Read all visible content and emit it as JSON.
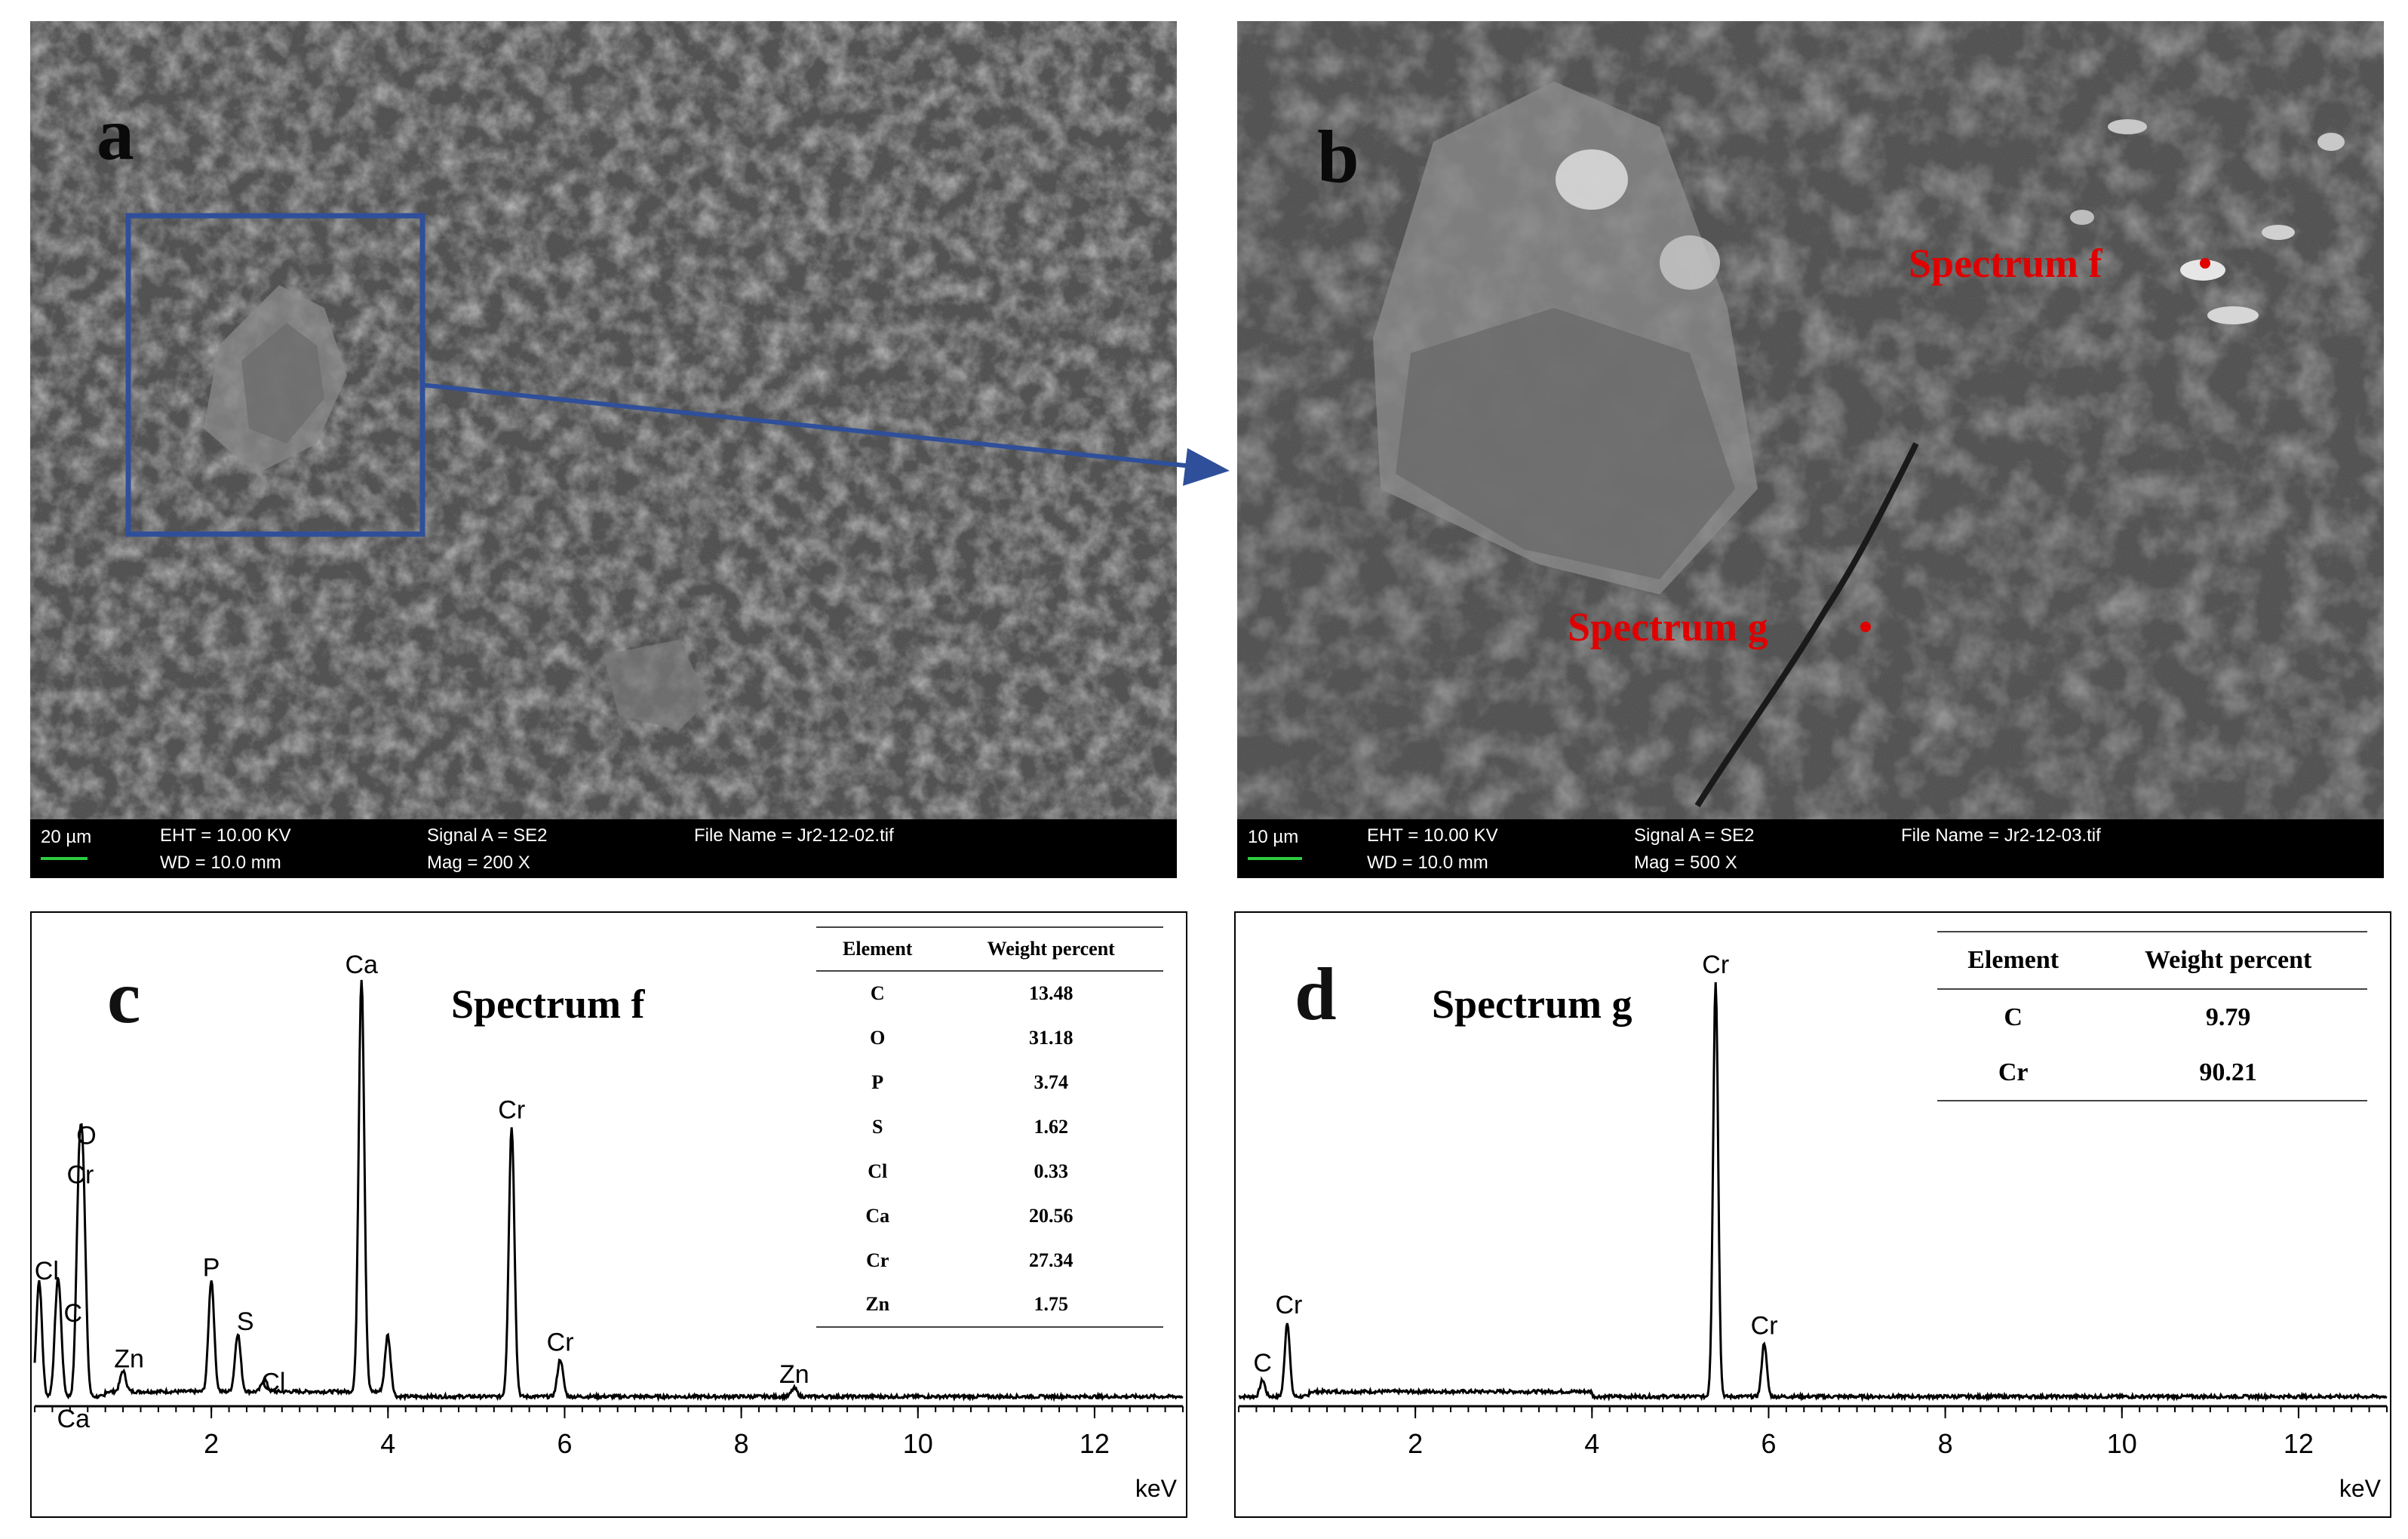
{
  "panels": {
    "a": {
      "letter": "a",
      "info": {
        "scale": "20 µm",
        "eht": "EHT = 10.00 KV",
        "wd": "WD = 10.0 mm",
        "signal": "Signal A = SE2",
        "mag": "Mag =    200 X",
        "file": "File Name = Jr2-12-02.tif"
      }
    },
    "b": {
      "letter": "b",
      "info": {
        "scale": "10 µm",
        "eht": "EHT = 10.00 KV",
        "wd": "WD = 10.0 mm",
        "signal": "Signal A = SE2",
        "mag": "Mag =    500 X",
        "file": "File Name = Jr2-12-03.tif"
      },
      "spots": {
        "f": "Spectrum f",
        "g": "Spectrum g"
      }
    },
    "c": {
      "letter": "c",
      "title": "Spectrum f",
      "unit": "keV",
      "table": {
        "headers": [
          "Element",
          "Weight percent"
        ],
        "rows": [
          [
            "C",
            "13.48"
          ],
          [
            "O",
            "31.18"
          ],
          [
            "P",
            "3.74"
          ],
          [
            "S",
            "1.62"
          ],
          [
            "Cl",
            "0.33"
          ],
          [
            "Ca",
            "20.56"
          ],
          [
            "Cr",
            "27.34"
          ],
          [
            "Zn",
            "1.75"
          ]
        ]
      }
    },
    "d": {
      "letter": "d",
      "title": "Spectrum g",
      "unit": "keV",
      "table": {
        "headers": [
          "Element",
          "Weight percent"
        ],
        "rows": [
          [
            "C",
            "9.79"
          ],
          [
            "Cr",
            "90.21"
          ]
        ]
      }
    }
  },
  "chart_data": [
    {
      "type": "line",
      "name": "Spectrum f",
      "xlabel": "keV",
      "xlim": [
        0,
        13
      ],
      "xticks": [
        2,
        4,
        6,
        8,
        10,
        12
      ],
      "ylim": [
        0,
        100
      ],
      "peaks": [
        {
          "label": "Cl",
          "x": 0.05,
          "y": 28
        },
        {
          "label": "C",
          "x": 0.28,
          "y": 16
        },
        {
          "label": "Ca",
          "x": 0.25,
          "y": 16
        },
        {
          "label": "O",
          "x": 0.5,
          "y": 45
        },
        {
          "label": "Cr",
          "x": 0.55,
          "y": 45
        },
        {
          "label": "Zn",
          "x": 1.0,
          "y": 5
        },
        {
          "label": "P",
          "x": 2.0,
          "y": 27
        },
        {
          "label": "S",
          "x": 2.3,
          "y": 14
        },
        {
          "label": "Cl",
          "x": 2.6,
          "y": 3
        },
        {
          "label": "Ca",
          "x": 3.7,
          "y": 100
        },
        {
          "label": "",
          "x": 4.0,
          "y": 14
        },
        {
          "label": "Cr",
          "x": 5.4,
          "y": 65
        },
        {
          "label": "Cr",
          "x": 5.95,
          "y": 9
        },
        {
          "label": "Zn",
          "x": 8.6,
          "y": 2
        }
      ]
    },
    {
      "type": "line",
      "name": "Spectrum g",
      "xlabel": "keV",
      "xlim": [
        0,
        13
      ],
      "xticks": [
        2,
        4,
        6,
        8,
        10,
        12
      ],
      "ylim": [
        0,
        100
      ],
      "peaks": [
        {
          "label": "C",
          "x": 0.27,
          "y": 4
        },
        {
          "label": "Cr",
          "x": 0.55,
          "y": 18
        },
        {
          "label": "Cr",
          "x": 5.4,
          "y": 100
        },
        {
          "label": "Cr",
          "x": 5.95,
          "y": 13
        }
      ]
    }
  ]
}
